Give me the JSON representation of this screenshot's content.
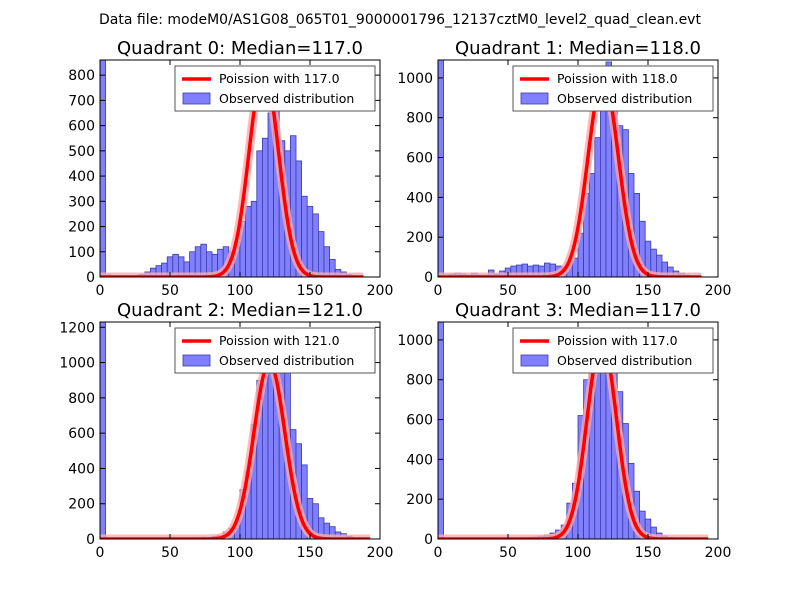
{
  "figure_title": "Data file: modeM0/AS1G08_065T01_9000001796_12137cztM0_level2_quad_clean.evt",
  "colors": {
    "bar_fill": "#8080ff",
    "bar_edge": "#3a3aaa",
    "curve": "#ff0000",
    "curve_light": "#ffaaaa",
    "axis": "#000000"
  },
  "chart_data": [
    {
      "type": "bar",
      "title": "Quadrant 0: Median=117.0",
      "median": 117.0,
      "legend": [
        "Poission with 117.0",
        "Observed distribution"
      ],
      "legend_position": "top-right",
      "xlim": [
        0,
        200
      ],
      "ylim": [
        0,
        860
      ],
      "xticks": [
        0,
        50,
        100,
        150,
        200
      ],
      "yticks": [
        0,
        100,
        200,
        300,
        400,
        500,
        600,
        700,
        800
      ],
      "bin_width": 4,
      "bins": [
        [
          0,
          860
        ],
        [
          4,
          8
        ],
        [
          8,
          5
        ],
        [
          12,
          4
        ],
        [
          16,
          5
        ],
        [
          20,
          5
        ],
        [
          24,
          6
        ],
        [
          28,
          10
        ],
        [
          32,
          20
        ],
        [
          36,
          35
        ],
        [
          40,
          45
        ],
        [
          44,
          55
        ],
        [
          48,
          80
        ],
        [
          52,
          90
        ],
        [
          56,
          80
        ],
        [
          60,
          60
        ],
        [
          64,
          100
        ],
        [
          68,
          120
        ],
        [
          72,
          130
        ],
        [
          76,
          100
        ],
        [
          80,
          90
        ],
        [
          84,
          110
        ],
        [
          88,
          120
        ],
        [
          92,
          100
        ],
        [
          96,
          140
        ],
        [
          100,
          220
        ],
        [
          104,
          280
        ],
        [
          108,
          300
        ],
        [
          112,
          500
        ],
        [
          116,
          550
        ],
        [
          120,
          650
        ],
        [
          124,
          700
        ],
        [
          128,
          540
        ],
        [
          132,
          500
        ],
        [
          136,
          560
        ],
        [
          140,
          460
        ],
        [
          144,
          320
        ],
        [
          148,
          280
        ],
        [
          152,
          250
        ],
        [
          156,
          180
        ],
        [
          160,
          120
        ],
        [
          164,
          70
        ],
        [
          168,
          30
        ],
        [
          172,
          20
        ],
        [
          176,
          10
        ],
        [
          180,
          5
        ],
        [
          184,
          3
        ]
      ],
      "curve_peak": 820,
      "curve_sigma": 10.5,
      "curve_range": [
        0,
        188
      ]
    },
    {
      "type": "bar",
      "title": "Quadrant 1: Median=118.0",
      "median": 118.0,
      "legend": [
        "Poission with 118.0",
        "Observed distribution"
      ],
      "legend_position": "top-right",
      "xlim": [
        0,
        200
      ],
      "ylim": [
        0,
        1090
      ],
      "xticks": [
        0,
        50,
        100,
        150,
        200
      ],
      "yticks": [
        0,
        200,
        400,
        600,
        800,
        1000
      ],
      "bin_width": 4,
      "bins": [
        [
          0,
          1090
        ],
        [
          4,
          10
        ],
        [
          8,
          15
        ],
        [
          12,
          20
        ],
        [
          16,
          15
        ],
        [
          20,
          10
        ],
        [
          24,
          20
        ],
        [
          28,
          10
        ],
        [
          32,
          10
        ],
        [
          36,
          35
        ],
        [
          40,
          15
        ],
        [
          44,
          30
        ],
        [
          48,
          45
        ],
        [
          52,
          55
        ],
        [
          56,
          60
        ],
        [
          60,
          65
        ],
        [
          64,
          55
        ],
        [
          68,
          60
        ],
        [
          72,
          55
        ],
        [
          76,
          70
        ],
        [
          80,
          65
        ],
        [
          84,
          55
        ],
        [
          88,
          50
        ],
        [
          92,
          70
        ],
        [
          96,
          95
        ],
        [
          100,
          220
        ],
        [
          104,
          420
        ],
        [
          108,
          520
        ],
        [
          112,
          700
        ],
        [
          116,
          930
        ],
        [
          120,
          1080
        ],
        [
          124,
          1030
        ],
        [
          128,
          760
        ],
        [
          132,
          740
        ],
        [
          136,
          520
        ],
        [
          140,
          420
        ],
        [
          144,
          280
        ],
        [
          148,
          180
        ],
        [
          152,
          140
        ],
        [
          156,
          110
        ],
        [
          160,
          75
        ],
        [
          164,
          50
        ],
        [
          168,
          30
        ],
        [
          172,
          20
        ],
        [
          176,
          10
        ],
        [
          180,
          5
        ],
        [
          184,
          3
        ]
      ],
      "curve_peak": 1000,
      "curve_sigma": 10.8,
      "curve_range": [
        0,
        188
      ]
    },
    {
      "type": "bar",
      "title": "Quadrant 2: Median=121.0",
      "median": 121.0,
      "legend": [
        "Poission with 121.0",
        "Observed distribution"
      ],
      "legend_position": "top-right",
      "xlim": [
        0,
        200
      ],
      "ylim": [
        0,
        1230
      ],
      "xticks": [
        0,
        50,
        100,
        150,
        200
      ],
      "yticks": [
        0,
        200,
        400,
        600,
        800,
        1000,
        1200
      ],
      "bin_width": 4,
      "bins": [
        [
          0,
          1230
        ],
        [
          4,
          5
        ],
        [
          8,
          5
        ],
        [
          12,
          4
        ],
        [
          16,
          4
        ],
        [
          20,
          3
        ],
        [
          24,
          3
        ],
        [
          28,
          3
        ],
        [
          32,
          3
        ],
        [
          36,
          3
        ],
        [
          40,
          3
        ],
        [
          44,
          3
        ],
        [
          48,
          3
        ],
        [
          52,
          3
        ],
        [
          56,
          3
        ],
        [
          60,
          3
        ],
        [
          64,
          3
        ],
        [
          68,
          5
        ],
        [
          72,
          10
        ],
        [
          76,
          8
        ],
        [
          80,
          15
        ],
        [
          84,
          20
        ],
        [
          88,
          40
        ],
        [
          92,
          60
        ],
        [
          96,
          100
        ],
        [
          100,
          280
        ],
        [
          104,
          380
        ],
        [
          108,
          650
        ],
        [
          112,
          900
        ],
        [
          116,
          1000
        ],
        [
          120,
          1180
        ],
        [
          124,
          1170
        ],
        [
          128,
          1060
        ],
        [
          132,
          950
        ],
        [
          136,
          620
        ],
        [
          140,
          540
        ],
        [
          144,
          420
        ],
        [
          148,
          230
        ],
        [
          152,
          200
        ],
        [
          156,
          120
        ],
        [
          160,
          90
        ],
        [
          164,
          70
        ],
        [
          168,
          40
        ],
        [
          172,
          30
        ],
        [
          176,
          15
        ],
        [
          180,
          5
        ]
      ],
      "curve_peak": 1000,
      "curve_sigma": 11,
      "curve_range": [
        0,
        193
      ]
    },
    {
      "type": "bar",
      "title": "Quadrant 3: Median=117.0",
      "median": 117.0,
      "legend": [
        "Poission with 117.0",
        "Observed distribution"
      ],
      "legend_position": "top-right",
      "xlim": [
        0,
        200
      ],
      "ylim": [
        0,
        1090
      ],
      "xticks": [
        0,
        50,
        100,
        150,
        200
      ],
      "yticks": [
        0,
        200,
        400,
        600,
        800,
        1000
      ],
      "bin_width": 4,
      "bins": [
        [
          0,
          1090
        ],
        [
          4,
          5
        ],
        [
          8,
          5
        ],
        [
          12,
          4
        ],
        [
          16,
          4
        ],
        [
          20,
          3
        ],
        [
          24,
          3
        ],
        [
          28,
          3
        ],
        [
          32,
          3
        ],
        [
          36,
          3
        ],
        [
          40,
          3
        ],
        [
          44,
          3
        ],
        [
          48,
          3
        ],
        [
          52,
          3
        ],
        [
          56,
          3
        ],
        [
          60,
          5
        ],
        [
          64,
          8
        ],
        [
          68,
          10
        ],
        [
          72,
          15
        ],
        [
          76,
          20
        ],
        [
          80,
          30
        ],
        [
          84,
          45
        ],
        [
          88,
          70
        ],
        [
          92,
          180
        ],
        [
          96,
          280
        ],
        [
          100,
          620
        ],
        [
          104,
          800
        ],
        [
          108,
          950
        ],
        [
          112,
          1000
        ],
        [
          116,
          1060
        ],
        [
          120,
          1020
        ],
        [
          124,
          880
        ],
        [
          128,
          740
        ],
        [
          132,
          580
        ],
        [
          136,
          380
        ],
        [
          140,
          240
        ],
        [
          144,
          140
        ],
        [
          148,
          100
        ],
        [
          152,
          60
        ],
        [
          156,
          30
        ],
        [
          160,
          15
        ],
        [
          164,
          8
        ],
        [
          168,
          5
        ]
      ],
      "curve_peak": 1000,
      "curve_sigma": 10.5,
      "curve_range": [
        0,
        193
      ]
    }
  ]
}
